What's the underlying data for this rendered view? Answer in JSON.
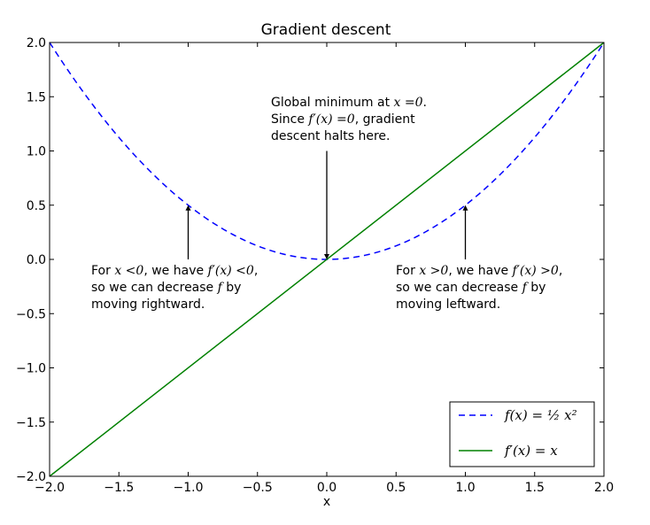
{
  "chart_data": {
    "type": "line",
    "title": "Gradient descent",
    "xlabel": "x",
    "ylabel": "",
    "xlim": [
      -2.0,
      2.0
    ],
    "ylim": [
      -2.0,
      2.0
    ],
    "grid": false,
    "legend_position": "bottom-right",
    "xticks": [
      -2.0,
      -1.5,
      -1.0,
      -0.5,
      0.0,
      0.5,
      1.0,
      1.5,
      2.0
    ],
    "yticks": [
      -2.0,
      -1.5,
      -1.0,
      -0.5,
      0.0,
      0.5,
      1.0,
      1.5,
      2.0
    ],
    "xtick_labels": [
      "−2.0",
      "−1.5",
      "−1.0",
      "−0.5",
      "0.0",
      "0.5",
      "1.0",
      "1.5",
      "2.0"
    ],
    "ytick_labels": [
      "−2.0",
      "−1.5",
      "−1.0",
      "−0.5",
      "0.0",
      "0.5",
      "1.0",
      "1.5",
      "2.0"
    ],
    "series": [
      {
        "name": "f(x) = ½ x²",
        "style": "dashed",
        "color": "#0000ff",
        "x": [
          -2.0,
          -1.75,
          -1.5,
          -1.25,
          -1.0,
          -0.75,
          -0.5,
          -0.25,
          0.0,
          0.25,
          0.5,
          0.75,
          1.0,
          1.25,
          1.5,
          1.75,
          2.0
        ],
        "y": [
          2.0,
          1.53,
          1.125,
          0.78,
          0.5,
          0.28,
          0.125,
          0.031,
          0.0,
          0.031,
          0.125,
          0.28,
          0.5,
          0.78,
          1.125,
          1.53,
          2.0
        ]
      },
      {
        "name": "f′(x) = x",
        "style": "solid",
        "color": "#008000",
        "x": [
          -2.0,
          2.0
        ],
        "y": [
          -2.0,
          2.0
        ]
      }
    ],
    "annotations": [
      {
        "lines": [
          [
            {
              "t": "For "
            },
            {
              "t": "x",
              "m": true
            },
            {
              "t": " <0",
              "m": true
            },
            {
              "t": ", we have "
            },
            {
              "t": "f′(x) <0",
              "m": true
            },
            {
              "t": ","
            }
          ],
          [
            {
              "t": "so we can decrease "
            },
            {
              "t": "f",
              "m": true
            },
            {
              "t": " by"
            }
          ],
          [
            {
              "t": "moving rightward."
            }
          ]
        ],
        "arrow_to": [
          -1.0,
          0.5
        ],
        "arrow_from": [
          -1.0,
          0.0
        ]
      },
      {
        "lines": [
          [
            {
              "t": "Global minimum at "
            },
            {
              "t": "x",
              "m": true
            },
            {
              "t": " =0",
              "m": true
            },
            {
              "t": "."
            }
          ],
          [
            {
              "t": "Since "
            },
            {
              "t": "f′(x) =0",
              "m": true
            },
            {
              "t": ", gradient"
            }
          ],
          [
            {
              "t": "descent halts here."
            }
          ]
        ],
        "arrow_to": [
          0.0,
          0.0
        ],
        "arrow_from": [
          0.0,
          1.0
        ]
      },
      {
        "lines": [
          [
            {
              "t": "For "
            },
            {
              "t": "x",
              "m": true
            },
            {
              "t": " >0",
              "m": true
            },
            {
              "t": ", we have "
            },
            {
              "t": "f′(x) >0",
              "m": true
            },
            {
              "t": ","
            }
          ],
          [
            {
              "t": "so we can decrease "
            },
            {
              "t": "f",
              "m": true
            },
            {
              "t": " by"
            }
          ],
          [
            {
              "t": "moving leftward."
            }
          ]
        ],
        "arrow_to": [
          1.0,
          0.5
        ],
        "arrow_from": [
          1.0,
          0.0
        ]
      }
    ]
  }
}
